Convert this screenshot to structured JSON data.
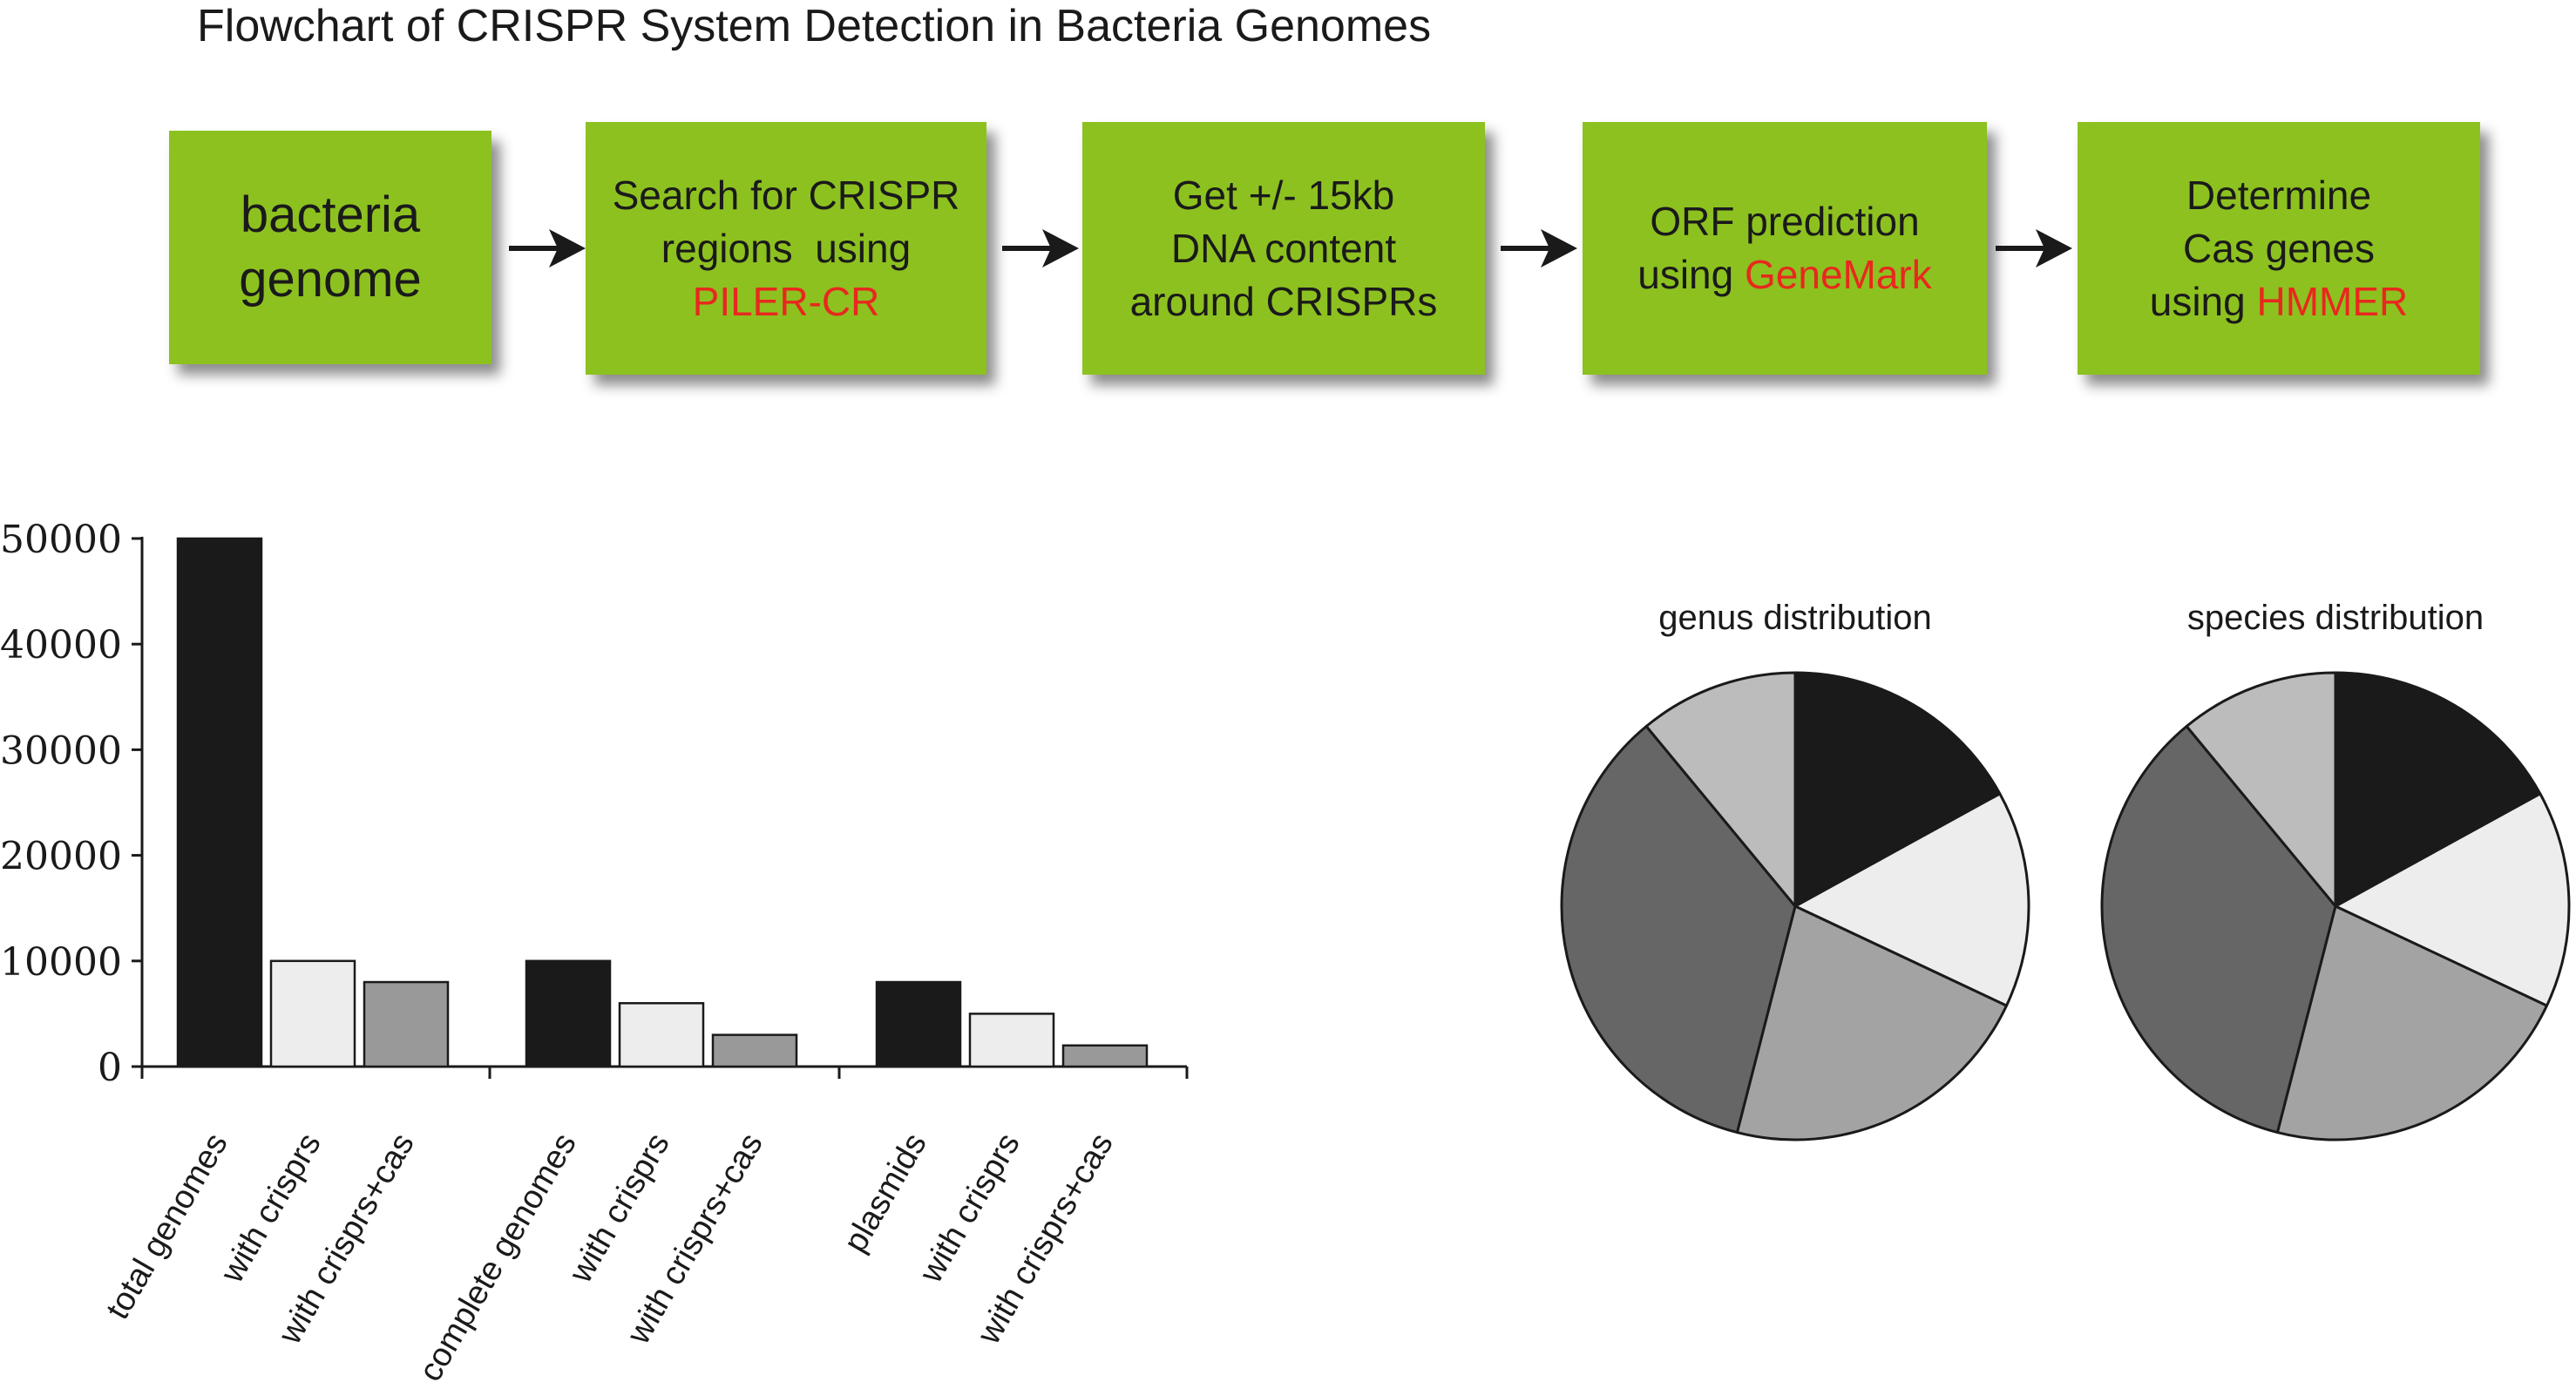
{
  "title": "Flowchart of CRISPR System Detection in Bacteria Genomes",
  "flowchart": {
    "steps": [
      {
        "lines": [
          "bacteria",
          "genome"
        ],
        "highlight": ""
      },
      {
        "lines": [
          "Search for CRISPR",
          "regions  using"
        ],
        "highlight": "PILER-CR"
      },
      {
        "lines": [
          "Get +/- 15kb",
          "DNA content",
          "around CRISPRs"
        ],
        "highlight": ""
      },
      {
        "lines": [
          "ORF prediction",
          "using "
        ],
        "highlight": "GeneMark"
      },
      {
        "lines": [
          "Determine",
          "Cas genes",
          "using "
        ],
        "highlight": "HMMER"
      }
    ],
    "box_color": "#8dc120",
    "highlight_color": "#e8281e"
  },
  "chart_data": [
    {
      "type": "bar",
      "ylim": [
        0,
        50000
      ],
      "yticks": [
        "0",
        "10000",
        "20000",
        "30000",
        "40000",
        "50000"
      ],
      "categories": [
        "total genomes",
        "with crisprs",
        "with crisprs+cas",
        "complete genomes",
        "with crisprs",
        "with crisprs+cas",
        "plasmids",
        "with crisprs",
        "with crisprs+cas"
      ],
      "values": [
        50000,
        10000,
        8000,
        10000,
        6000,
        3000,
        8000,
        5000,
        2000
      ],
      "colors": [
        "#1a1a1a",
        "#ededed",
        "#999999",
        "#1a1a1a",
        "#ededed",
        "#999999",
        "#1a1a1a",
        "#ededed",
        "#999999"
      ]
    },
    {
      "type": "pie",
      "title": "genus distribution",
      "values": [
        17,
        15,
        22,
        35,
        11
      ],
      "colors": [
        "#1a1a1a",
        "#ededed",
        "#a3a3a3",
        "#666666",
        "#bcbcbc"
      ]
    },
    {
      "type": "pie",
      "title": "species distribution",
      "values": [
        17,
        15,
        22,
        35,
        11
      ],
      "colors": [
        "#1a1a1a",
        "#ededed",
        "#a3a3a3",
        "#666666",
        "#bcbcbc"
      ]
    }
  ]
}
